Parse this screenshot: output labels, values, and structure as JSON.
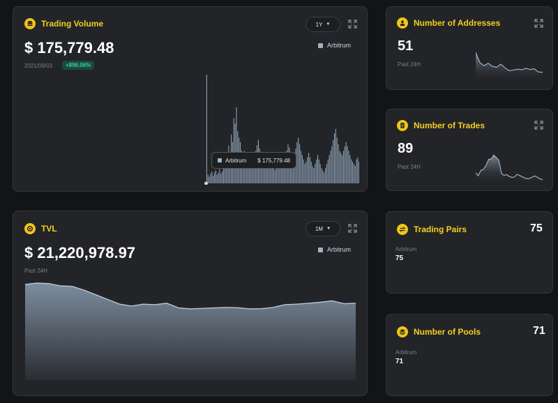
{
  "trading_volume": {
    "title": "Trading Volume",
    "period": "1Y",
    "value": "$ 175,779.48",
    "date": "2021/09/03",
    "change": "+896.06%",
    "legend": "Arbitrum",
    "tooltip": {
      "series": "Arbitrum",
      "value": "$ 175,779.48"
    },
    "icon": "coins-stack-icon"
  },
  "tvl": {
    "title": "TVL",
    "period": "1M",
    "value": "$ 21,220,978.97",
    "sublabel": "Past 24H",
    "legend": "Arbitrum",
    "icon": "circle-dot-icon"
  },
  "addresses": {
    "title": "Number of Addresses",
    "value": "51",
    "sublabel": "Past 24H",
    "icon": "user-icon"
  },
  "trades": {
    "title": "Number of Trades",
    "value": "89",
    "sublabel": "Past 24H",
    "icon": "document-icon"
  },
  "pairs": {
    "title": "Trading Pairs",
    "total": "75",
    "chain": "Arbitrum",
    "chain_value": "75",
    "icon": "swap-icon"
  },
  "pools": {
    "title": "Number of Pools",
    "total": "71",
    "chain": "Arbitrum",
    "chain_value": "71",
    "icon": "layers-icon"
  },
  "colors": {
    "accent": "#f5cf1f",
    "series": "#9fb2c8",
    "positive": "#36d29a"
  },
  "chart_data": [
    {
      "type": "bar",
      "series": [
        {
          "name": "Arbitrum",
          "values": [
            1,
            100,
            8,
            6,
            9,
            11,
            7,
            10,
            12,
            8,
            10,
            13,
            9,
            11,
            14,
            18,
            24,
            20,
            35,
            28,
            45,
            38,
            60,
            55,
            70,
            48,
            42,
            38,
            30,
            26,
            30,
            24,
            20,
            18,
            14,
            16,
            20,
            17,
            22,
            30,
            35,
            40,
            32,
            28,
            22,
            18,
            16,
            20,
            24,
            28,
            22,
            18,
            16,
            14,
            12,
            16,
            20,
            22,
            24,
            20,
            18,
            22,
            26,
            30,
            36,
            33,
            29,
            25,
            22,
            26,
            32,
            38,
            42,
            36,
            30,
            26,
            22,
            18,
            20,
            24,
            28,
            24,
            20,
            16,
            14,
            18,
            22,
            26,
            22,
            18,
            14,
            12,
            10,
            14,
            18,
            22,
            26,
            30,
            34,
            40,
            46,
            50,
            42,
            36,
            30,
            28,
            26,
            30,
            34,
            38,
            34,
            30,
            26,
            22,
            20,
            18,
            16,
            22,
            24,
            20
          ]
        }
      ]
    },
    {
      "type": "area",
      "series": [
        {
          "name": "Arbitrum",
          "values": [
            10.2,
            10.35,
            10.3,
            10.05,
            10.0,
            9.6,
            9.1,
            8.6,
            8.1,
            7.9,
            8.1,
            8.05,
            8.2,
            7.7,
            7.6,
            7.65,
            7.7,
            7.75,
            7.72,
            7.6,
            7.62,
            7.75,
            8.05,
            8.1,
            8.2,
            8.3,
            8.45,
            8.15,
            8.2
          ]
        }
      ]
    },
    {
      "type": "area",
      "series": [
        {
          "name": "Arbitrum",
          "values": [
            88,
            56,
            46,
            54,
            44,
            41,
            51,
            39,
            30,
            32,
            35,
            33,
            38,
            34,
            36,
            26,
            25
          ]
        }
      ]
    },
    {
      "type": "area",
      "series": [
        {
          "name": "Arbitrum",
          "values": [
            30,
            21,
            37,
            40,
            52,
            70,
            71,
            83,
            76,
            67,
            28,
            22,
            24,
            19,
            16,
            17,
            25,
            22,
            18,
            14,
            12,
            13,
            17,
            20,
            16,
            11,
            9
          ]
        }
      ]
    }
  ]
}
